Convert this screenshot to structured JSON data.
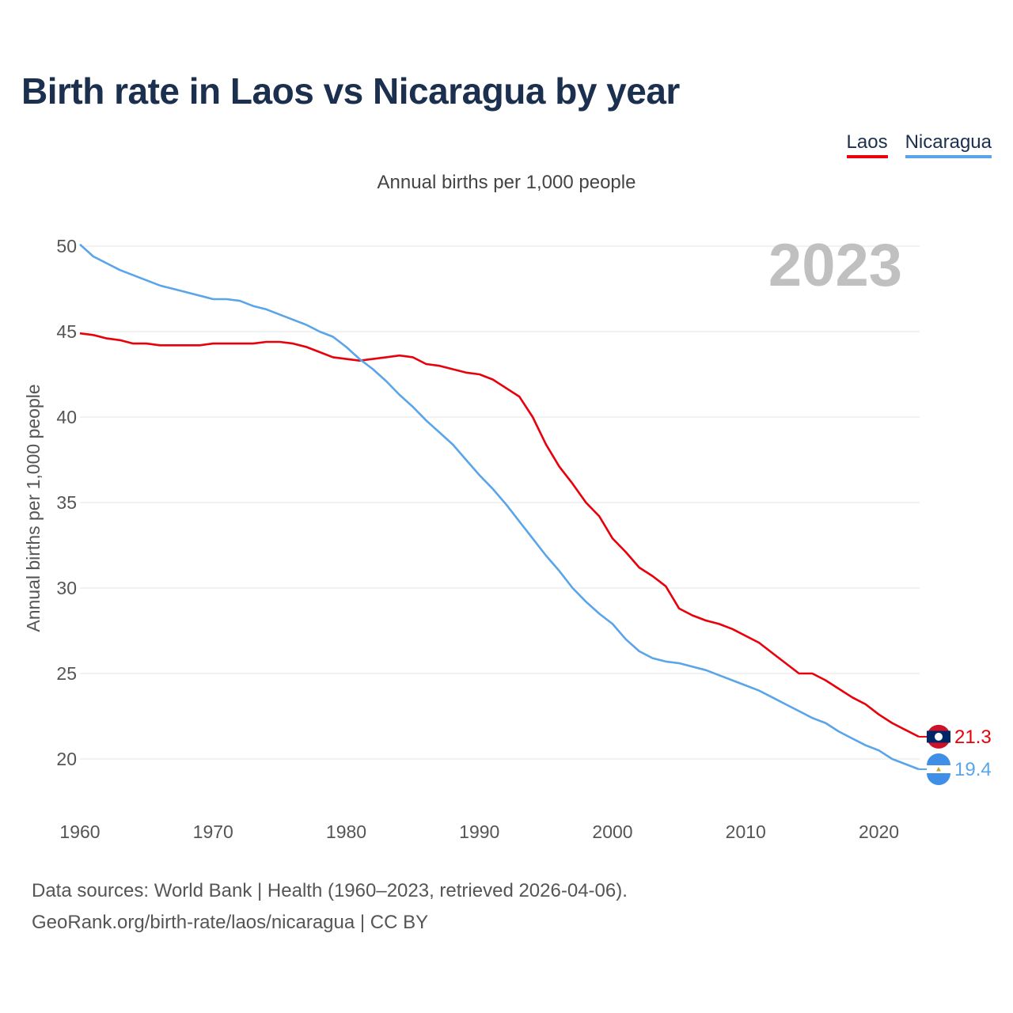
{
  "title": "Birth rate in Laos vs Nicaragua by year",
  "subtitle": "Annual births per 1,000 people",
  "legend": {
    "laos": "Laos",
    "nicaragua": "Nicaragua"
  },
  "footer": {
    "line1": "Data sources: World Bank | Health (1960–2023, retrieved 2026-04-06).",
    "line2": "GeoRank.org/birth-rate/laos/nicaragua | CC BY"
  },
  "colors": {
    "laos": "#e8000b",
    "nicaragua": "#5aa5ea",
    "grid": "#e6e6e6",
    "title": "#1b2f4e"
  },
  "chart_data": {
    "type": "line",
    "title": "Birth rate in Laos vs Nicaragua by year",
    "ylabel": "Annual births per 1,000 people",
    "xlabel": "",
    "current_year_label": "2023",
    "xlim": [
      1960,
      2023
    ],
    "ylim": [
      18,
      50
    ],
    "yticks": [
      20,
      25,
      30,
      35,
      40,
      45,
      50
    ],
    "xticks": [
      1960,
      1970,
      1980,
      1990,
      2000,
      2010,
      2020
    ],
    "grid": true,
    "legend_position": "top-right",
    "x": [
      1960,
      1961,
      1962,
      1963,
      1964,
      1965,
      1966,
      1967,
      1968,
      1969,
      1970,
      1971,
      1972,
      1973,
      1974,
      1975,
      1976,
      1977,
      1978,
      1979,
      1980,
      1981,
      1982,
      1983,
      1984,
      1985,
      1986,
      1987,
      1988,
      1989,
      1990,
      1991,
      1992,
      1993,
      1994,
      1995,
      1996,
      1997,
      1998,
      1999,
      2000,
      2001,
      2002,
      2003,
      2004,
      2005,
      2006,
      2007,
      2008,
      2009,
      2010,
      2011,
      2012,
      2013,
      2014,
      2015,
      2016,
      2017,
      2018,
      2019,
      2020,
      2021,
      2022,
      2023
    ],
    "series": [
      {
        "name": "Laos",
        "key": "laos",
        "end_label": "21.3",
        "flag_icon": "laos-flag-icon",
        "values": [
          44.9,
          44.8,
          44.6,
          44.5,
          44.3,
          44.3,
          44.2,
          44.2,
          44.2,
          44.2,
          44.3,
          44.3,
          44.3,
          44.3,
          44.4,
          44.4,
          44.3,
          44.1,
          43.8,
          43.5,
          43.4,
          43.3,
          43.4,
          43.5,
          43.6,
          43.5,
          43.1,
          43.0,
          42.8,
          42.6,
          42.5,
          42.2,
          41.7,
          41.2,
          40.0,
          38.4,
          37.1,
          36.1,
          35.0,
          34.2,
          32.9,
          32.1,
          31.2,
          30.7,
          30.1,
          28.8,
          28.4,
          28.1,
          27.9,
          27.6,
          27.2,
          26.8,
          26.2,
          25.6,
          25.0,
          25.0,
          24.6,
          24.1,
          23.6,
          23.2,
          22.6,
          22.1,
          21.7,
          21.3
        ]
      },
      {
        "name": "Nicaragua",
        "key": "nicaragua",
        "end_label": "19.4",
        "flag_icon": "nicaragua-flag-icon",
        "values": [
          50.1,
          49.4,
          49.0,
          48.6,
          48.3,
          48.0,
          47.7,
          47.5,
          47.3,
          47.1,
          46.9,
          46.9,
          46.8,
          46.5,
          46.3,
          46.0,
          45.7,
          45.4,
          45.0,
          44.7,
          44.1,
          43.4,
          42.8,
          42.1,
          41.3,
          40.6,
          39.8,
          39.1,
          38.4,
          37.5,
          36.6,
          35.8,
          34.9,
          33.9,
          32.9,
          31.9,
          31.0,
          30.0,
          29.2,
          28.5,
          27.9,
          27.0,
          26.3,
          25.9,
          25.7,
          25.6,
          25.4,
          25.2,
          24.9,
          24.6,
          24.3,
          24.0,
          23.6,
          23.2,
          22.8,
          22.4,
          22.1,
          21.6,
          21.2,
          20.8,
          20.5,
          20.0,
          19.7,
          19.4
        ]
      }
    ]
  }
}
